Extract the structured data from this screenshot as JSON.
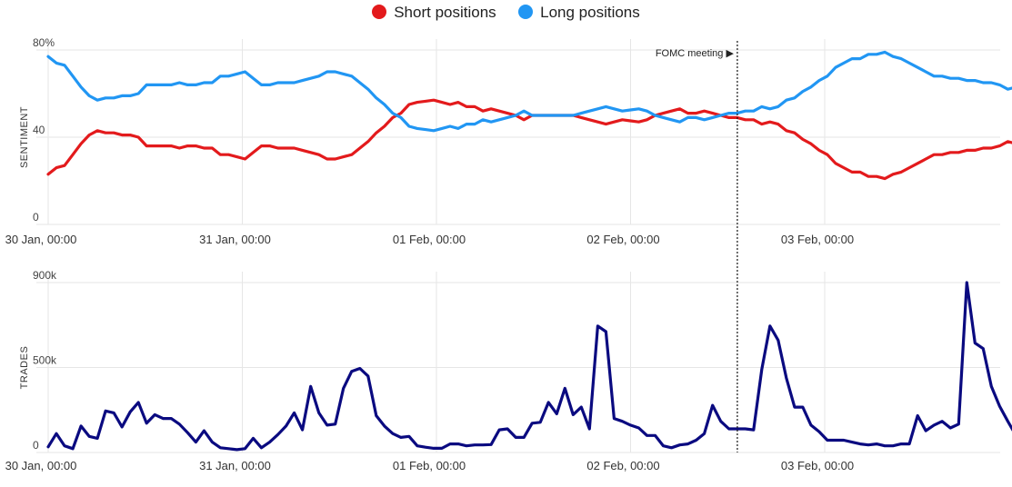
{
  "legend": [
    {
      "label": "Short positions",
      "color": "#e31a1c",
      "icon": "red-dot-icon"
    },
    {
      "label": "Long positions",
      "color": "#2196f3",
      "icon": "blue-dot-icon"
    }
  ],
  "chart_data": [
    {
      "type": "line",
      "ylabel": "SENTIMENT",
      "ylim": [
        0,
        80
      ],
      "yticks": [
        "80%",
        "40",
        "0"
      ],
      "xlim": [
        0,
        5.07
      ],
      "x_tick_labels": [
        "30 Jan, 00:00",
        "31 Jan, 00:00",
        "01 Feb, 00:00",
        "02 Feb, 00:00",
        "03 Feb, 00:00"
      ],
      "annotation": {
        "label": "FOMC meeting ▶",
        "x": 3.55
      },
      "grid": true,
      "series": [
        {
          "name": "Short positions",
          "color": "#e31a1c",
          "values": [
            23,
            26,
            27,
            32,
            37,
            41,
            43,
            42,
            42,
            41,
            41,
            40,
            36,
            36,
            36,
            36,
            35,
            36,
            36,
            35,
            35,
            32,
            32,
            31,
            30,
            33,
            36,
            36,
            35,
            35,
            35,
            34,
            33,
            32,
            30,
            30,
            31,
            32,
            35,
            38,
            42,
            45,
            49,
            51,
            55,
            56,
            56.5,
            57,
            56,
            55,
            56,
            54,
            54,
            52,
            53,
            52,
            51,
            50,
            48,
            50,
            50,
            50,
            50,
            50,
            50,
            49,
            48,
            47,
            46,
            47,
            48,
            47.5,
            47,
            48,
            50,
            51,
            52,
            53,
            51,
            51,
            52,
            51,
            50,
            49,
            49,
            48,
            48,
            46,
            47,
            46,
            43,
            42,
            39,
            37,
            34,
            32,
            28,
            26,
            24,
            24,
            22,
            22,
            21,
            23,
            24,
            26,
            28,
            30,
            32,
            32,
            33,
            33,
            34,
            34,
            35,
            35,
            36,
            38,
            37,
            36,
            36
          ]
        },
        {
          "name": "Long positions",
          "color": "#2196f3",
          "values": [
            77,
            74,
            73,
            68,
            63,
            59,
            57,
            58,
            58,
            59,
            59,
            60,
            64,
            64,
            64,
            64,
            65,
            64,
            64,
            65,
            65,
            68,
            68,
            69,
            70,
            67,
            64,
            64,
            65,
            65,
            65,
            66,
            67,
            68,
            70,
            70,
            69,
            68,
            65,
            62,
            58,
            55,
            51,
            49,
            45,
            44,
            43.5,
            43,
            44,
            45,
            44,
            46,
            46,
            48,
            47,
            48,
            49,
            50,
            52,
            50,
            50,
            50,
            50,
            50,
            50,
            51,
            52,
            53,
            54,
            53,
            52,
            52.5,
            53,
            52,
            50,
            49,
            48,
            47,
            49,
            49,
            48,
            49,
            50,
            51,
            51,
            52,
            52,
            54,
            53,
            54,
            57,
            58,
            61,
            63,
            66,
            68,
            72,
            74,
            76,
            76,
            78,
            78,
            79,
            77,
            76,
            74,
            72,
            70,
            68,
            68,
            67,
            67,
            66,
            66,
            65,
            65,
            64,
            62,
            63,
            64,
            64
          ]
        }
      ]
    },
    {
      "type": "line",
      "ylabel": "TRADES",
      "ylim": [
        0,
        900000
      ],
      "yticks": [
        "900k",
        "500k",
        "0"
      ],
      "xlim": [
        0,
        5.07
      ],
      "x_tick_labels": [
        "30 Jan, 00:00",
        "31 Jan, 00:00",
        "01 Feb, 00:00",
        "02 Feb, 00:00",
        "03 Feb, 00:00"
      ],
      "grid": true,
      "series": [
        {
          "color": "#0a0a80",
          "values": [
            30000,
            100000,
            35000,
            20000,
            140000,
            85000,
            75000,
            220000,
            210000,
            135000,
            215000,
            265000,
            155000,
            200000,
            180000,
            180000,
            150000,
            105000,
            55000,
            115000,
            55000,
            25000,
            20000,
            15000,
            20000,
            75000,
            25000,
            55000,
            95000,
            140000,
            210000,
            120000,
            350000,
            210000,
            145000,
            150000,
            340000,
            430000,
            445000,
            405000,
            195000,
            140000,
            100000,
            80000,
            85000,
            35000,
            28000,
            22000,
            22000,
            45000,
            45000,
            35000,
            40000,
            40000,
            42000,
            120000,
            125000,
            80000,
            80000,
            155000,
            160000,
            265000,
            205000,
            340000,
            200000,
            240000,
            125000,
            670000,
            640000,
            180000,
            165000,
            145000,
            130000,
            90000,
            90000,
            35000,
            25000,
            40000,
            45000,
            65000,
            100000,
            250000,
            165000,
            125000,
            125000,
            125000,
            120000,
            440000,
            670000,
            595000,
            395000,
            240000,
            240000,
            145000,
            110000,
            65000,
            65000,
            65000,
            55000,
            45000,
            40000,
            45000,
            35000,
            35000,
            45000,
            45000,
            195000,
            115000,
            145000,
            165000,
            130000,
            150000,
            900000,
            580000,
            550000,
            350000,
            245000,
            165000,
            90000,
            65000,
            60000
          ]
        }
      ]
    }
  ]
}
